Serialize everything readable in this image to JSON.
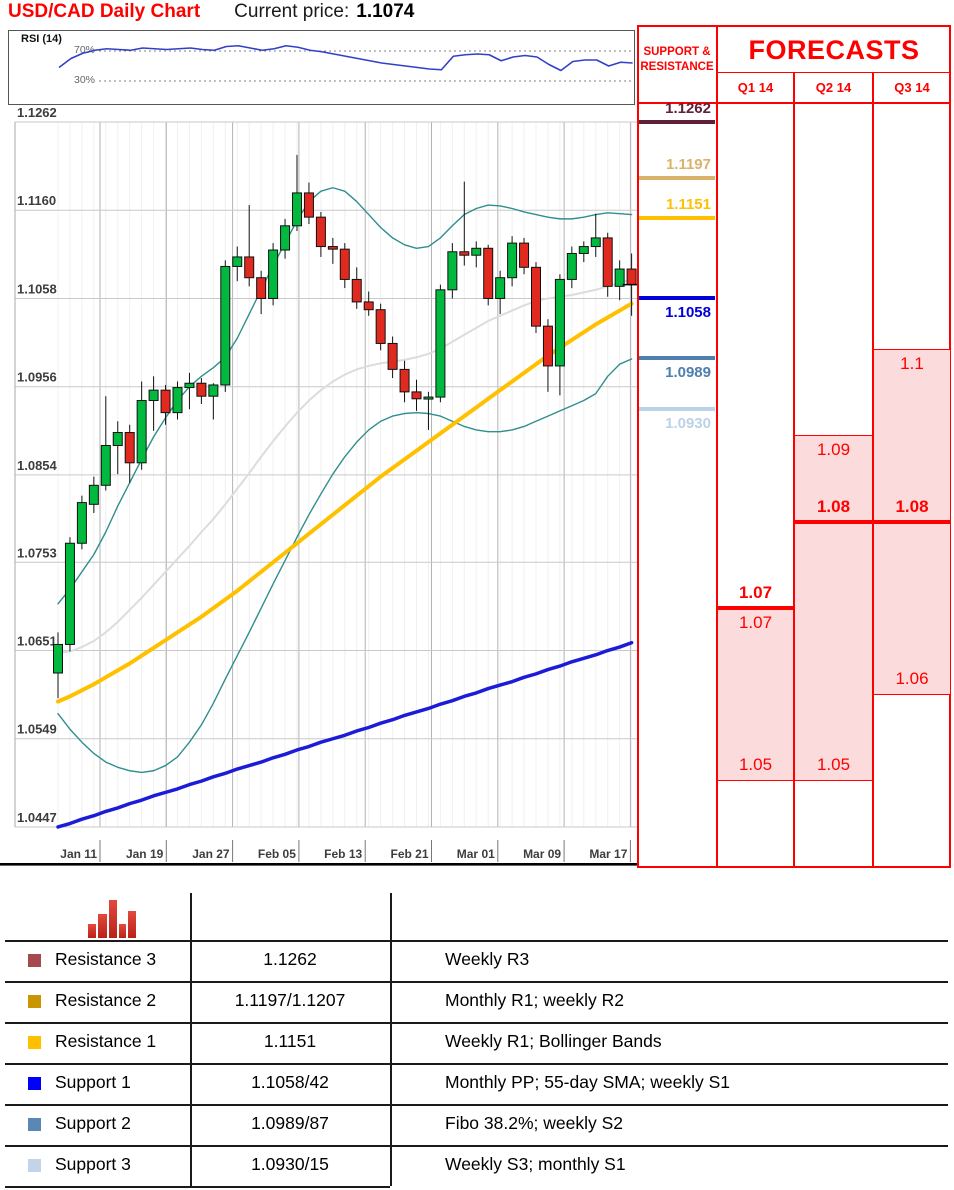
{
  "header": {
    "title": "USD/CAD Daily Chart",
    "current_price_label": "Current price:",
    "current_price": "1.1074"
  },
  "chart_data": {
    "type": "candlestick",
    "title": "USD/CAD Daily Chart",
    "current_price": 1.1074,
    "date_ticks": [
      "Jan 11",
      "Jan 19",
      "Jan 27",
      "Feb 05",
      "Feb 13",
      "Feb 21",
      "Mar 01",
      "Mar 09",
      "Mar 17"
    ],
    "price_ticks": [
      "1.1262",
      "1.1160",
      "1.1058",
      "1.0956",
      "1.0854",
      "1.0753",
      "1.0651",
      "1.0549",
      "1.0447"
    ],
    "ylim": [
      1.0447,
      1.1262
    ],
    "grid": true,
    "candles": [
      [
        1.0625,
        1.0672,
        1.0596,
        1.0658
      ],
      [
        1.0658,
        1.0782,
        1.065,
        1.0775
      ],
      [
        1.0775,
        1.083,
        1.0768,
        1.0822
      ],
      [
        1.082,
        1.0852,
        1.081,
        1.0842
      ],
      [
        1.0842,
        1.0945,
        1.0836,
        1.0888
      ],
      [
        1.0888,
        1.0916,
        1.0855,
        1.0903
      ],
      [
        1.0903,
        1.0912,
        1.0845,
        1.0868
      ],
      [
        1.0868,
        1.0962,
        1.086,
        1.094
      ],
      [
        1.094,
        1.0968,
        1.0905,
        1.0952
      ],
      [
        1.0952,
        1.0958,
        1.0912,
        1.0926
      ],
      [
        1.0926,
        1.0962,
        1.0918,
        1.0955
      ],
      [
        1.0955,
        1.0972,
        1.093,
        1.096
      ],
      [
        1.096,
        1.0966,
        1.0936,
        1.0945
      ],
      [
        1.0945,
        1.096,
        1.0918,
        1.0958
      ],
      [
        1.0958,
        1.1102,
        1.095,
        1.1095
      ],
      [
        1.1095,
        1.1118,
        1.1078,
        1.1106
      ],
      [
        1.1106,
        1.1166,
        1.1072,
        1.1082
      ],
      [
        1.1082,
        1.109,
        1.104,
        1.1058
      ],
      [
        1.1058,
        1.1122,
        1.105,
        1.1114
      ],
      [
        1.1114,
        1.115,
        1.1104,
        1.1142
      ],
      [
        1.1142,
        1.1224,
        1.1136,
        1.118
      ],
      [
        1.118,
        1.1192,
        1.1144,
        1.1152
      ],
      [
        1.1152,
        1.1158,
        1.1106,
        1.1118
      ],
      [
        1.1118,
        1.1128,
        1.1098,
        1.1115
      ],
      [
        1.1115,
        1.1122,
        1.107,
        1.108
      ],
      [
        1.108,
        1.1094,
        1.1046,
        1.1054
      ],
      [
        1.1054,
        1.1066,
        1.1038,
        1.1045
      ],
      [
        1.1045,
        1.1052,
        1.0998,
        1.1006
      ],
      [
        1.1006,
        1.1014,
        1.0966,
        1.0976
      ],
      [
        1.0976,
        1.0986,
        1.0938,
        1.095
      ],
      [
        1.095,
        1.0964,
        1.0928,
        1.0942
      ],
      [
        1.0942,
        1.095,
        1.0906,
        1.0944
      ],
      [
        1.0944,
        1.1074,
        1.0938,
        1.1068
      ],
      [
        1.1068,
        1.1122,
        1.1058,
        1.1112
      ],
      [
        1.1112,
        1.1193,
        1.1096,
        1.1108
      ],
      [
        1.1108,
        1.1124,
        1.1094,
        1.1116
      ],
      [
        1.1116,
        1.112,
        1.105,
        1.1058
      ],
      [
        1.1058,
        1.109,
        1.104,
        1.1082
      ],
      [
        1.1082,
        1.113,
        1.1072,
        1.1122
      ],
      [
        1.1122,
        1.1128,
        1.1086,
        1.1094
      ],
      [
        1.1094,
        1.11,
        1.1018,
        1.1026
      ],
      [
        1.1026,
        1.1034,
        1.095,
        1.098
      ],
      [
        1.098,
        1.1086,
        1.0946,
        1.108
      ],
      [
        1.108,
        1.1118,
        1.107,
        1.111
      ],
      [
        1.111,
        1.1124,
        1.11,
        1.1118
      ],
      [
        1.1118,
        1.1156,
        1.1106,
        1.1128
      ],
      [
        1.1128,
        1.1134,
        1.106,
        1.1072
      ],
      [
        1.1072,
        1.1102,
        1.1056,
        1.1092
      ],
      [
        1.1092,
        1.111,
        1.1038,
        1.1074
      ]
    ],
    "overlays": {
      "bollinger_upper": [
        1.0705,
        1.0722,
        1.0742,
        1.0762,
        1.0788,
        1.0818,
        1.0845,
        1.0872,
        1.0898,
        1.092,
        1.094,
        1.0956,
        1.0968,
        1.0978,
        1.099,
        1.1012,
        1.104,
        1.1068,
        1.1096,
        1.1122,
        1.1148,
        1.117,
        1.1182,
        1.1186,
        1.1182,
        1.117,
        1.1155,
        1.114,
        1.1128,
        1.112,
        1.1116,
        1.1118,
        1.1128,
        1.1142,
        1.1155,
        1.1162,
        1.1166,
        1.1165,
        1.1162,
        1.1158,
        1.1155,
        1.1152,
        1.115,
        1.115,
        1.1152,
        1.1155,
        1.1157,
        1.1156,
        1.1155
      ],
      "bollinger_lower": [
        1.0578,
        1.056,
        1.0545,
        1.0532,
        1.0522,
        1.0516,
        1.0512,
        1.051,
        1.0512,
        1.0518,
        1.0528,
        1.0545,
        1.0565,
        1.059,
        1.0618,
        1.0645,
        1.0672,
        1.07,
        1.0728,
        1.0755,
        1.0782,
        1.0808,
        1.0832,
        1.0855,
        1.0875,
        1.0892,
        1.0906,
        1.0916,
        1.0922,
        1.0925,
        1.0926,
        1.0925,
        1.0922,
        1.0916,
        1.091,
        1.0906,
        1.0904,
        1.0904,
        1.0906,
        1.091,
        1.0916,
        1.0922,
        1.0928,
        1.0934,
        1.094,
        1.0948,
        1.0968,
        1.0982,
        1.0988
      ],
      "sma20": [
        1.0648,
        1.065,
        1.0655,
        1.0662,
        1.0672,
        1.0684,
        1.0698,
        1.0712,
        1.0727,
        1.0742,
        1.0757,
        1.0772,
        1.0788,
        1.0803,
        1.082,
        1.0838,
        1.0856,
        1.0875,
        1.0893,
        1.091,
        1.0926,
        1.094,
        1.0952,
        1.0962,
        1.097,
        1.0976,
        1.098,
        1.0983,
        1.0985,
        1.0987,
        1.099,
        1.0994,
        1.1,
        1.1008,
        1.1016,
        1.1024,
        1.1032,
        1.1038,
        1.1044,
        1.105,
        1.1055,
        1.1058,
        1.106,
        1.1062,
        1.1065,
        1.1068,
        1.1072,
        1.1076,
        1.108
      ],
      "sma55": [
        1.0592,
        1.0598,
        1.0605,
        1.0612,
        1.062,
        1.0628,
        1.0636,
        1.0645,
        1.0654,
        1.0663,
        1.0672,
        1.0681,
        1.069,
        1.07,
        1.071,
        1.072,
        1.0731,
        1.0742,
        1.0753,
        1.0764,
        1.0775,
        1.0786,
        1.0797,
        1.0808,
        1.0819,
        1.083,
        1.0841,
        1.0852,
        1.0862,
        1.0872,
        1.0882,
        1.0892,
        1.0902,
        1.0912,
        1.0922,
        1.0932,
        1.0942,
        1.0952,
        1.0962,
        1.0972,
        1.0982,
        1.0992,
        1.1001,
        1.101,
        1.1019,
        1.1028,
        1.1036,
        1.1044,
        1.1052
      ],
      "sma200": [
        1.0447,
        1.0451,
        1.0456,
        1.046,
        1.0465,
        1.0469,
        1.0474,
        1.0478,
        1.0483,
        1.0487,
        1.0491,
        1.0496,
        1.05,
        1.0505,
        1.0509,
        1.0514,
        1.0518,
        1.0522,
        1.0527,
        1.0531,
        1.0536,
        1.054,
        1.0545,
        1.0549,
        1.0553,
        1.0558,
        1.0562,
        1.0567,
        1.0571,
        1.0576,
        1.058,
        1.0584,
        1.0589,
        1.0593,
        1.0598,
        1.0602,
        1.0607,
        1.0611,
        1.0615,
        1.062,
        1.0624,
        1.0629,
        1.0633,
        1.0638,
        1.0642,
        1.0646,
        1.0651,
        1.0655,
        1.066
      ]
    },
    "rsi": {
      "label": "RSI (14)",
      "upper_label": "70%",
      "lower_label": "30%",
      "upper": 70,
      "lower": 30,
      "values": [
        48,
        60,
        67,
        71,
        73,
        72,
        71,
        74,
        73,
        72,
        73,
        74,
        72,
        71,
        76,
        77,
        74,
        71,
        73,
        77,
        75,
        71,
        69,
        66,
        63,
        60,
        57,
        54,
        52,
        50,
        48,
        46,
        45,
        63,
        65,
        66,
        65,
        57,
        62,
        64,
        62,
        52,
        44,
        56,
        58,
        58,
        50,
        55,
        54
      ]
    },
    "support_resistance": {
      "header_line1": "SUPPORT &",
      "header_line2": "RESISTANCE",
      "levels": [
        {
          "label": "1.1262",
          "price": 1.1262,
          "color": "#5E2139",
          "kind": "resistance"
        },
        {
          "label": "1.1197",
          "price": 1.1197,
          "color": "#D9B36A",
          "kind": "resistance"
        },
        {
          "label": "1.1151",
          "price": 1.1151,
          "color": "#FFC000",
          "kind": "resistance"
        },
        {
          "label": "1.1058",
          "price": 1.1058,
          "color": "#0000D8",
          "kind": "support"
        },
        {
          "label": "1.0989",
          "price": 1.0989,
          "color": "#4E7FAE",
          "kind": "support"
        },
        {
          "label": "1.0930",
          "price": 1.093,
          "color": "#BCD2E8",
          "kind": "support"
        }
      ]
    },
    "forecasts": {
      "title": "FORECASTS",
      "quarters": [
        {
          "label": "Q1 14",
          "high": 1.07,
          "low": 1.05,
          "point": 1.07,
          "point_label": "1.07",
          "high_label": "1.07",
          "low_label": "1.05"
        },
        {
          "label": "Q2 14",
          "high": 1.09,
          "low": 1.05,
          "point": 1.08,
          "point_label": "1.08",
          "high_label": "1.09",
          "low_label": "1.05"
        },
        {
          "label": "Q3 14",
          "high": 1.1,
          "low": 1.06,
          "point": 1.08,
          "point_label": "1.08",
          "high_label": "1.1",
          "low_label": "1.06"
        }
      ]
    },
    "colors": {
      "up": "#00B93E",
      "down": "#E02A20",
      "wick": "#111111",
      "bollinger": "#2E8F8C",
      "sma20": "#DCDCDC",
      "sma55": "#FFC000",
      "sma200": "#1C1CD8",
      "rsi_line": "#3140C8",
      "accent_red": "#FF0000",
      "forecast_fill": "#FBDBDB"
    }
  },
  "levels_table": {
    "rows": [
      {
        "name": "Resistance 3",
        "color": "#A4494D",
        "value": "1.1262",
        "note": "Weekly R3"
      },
      {
        "name": "Resistance 2",
        "color": "#C99500",
        "value": "1.1197/1.1207",
        "note": "Monthly R1; weekly R2"
      },
      {
        "name": "Resistance 1",
        "color": "#FFC000",
        "value": "1.1151",
        "note": "Weekly R1; Bollinger Bands"
      },
      {
        "name": "Support 1",
        "color": "#0000FF",
        "value": "1.1058/42",
        "note": "Monthly PP; 55-day SMA; weekly S1"
      },
      {
        "name": "Support 2",
        "color": "#5B87B7",
        "value": "1.0989/87",
        "note": "Fibo 38.2%; weekly S2"
      },
      {
        "name": "Support 3",
        "color": "#C3D3EA",
        "value": "1.0930/15",
        "note": "Weekly S3; monthly S1"
      }
    ]
  }
}
